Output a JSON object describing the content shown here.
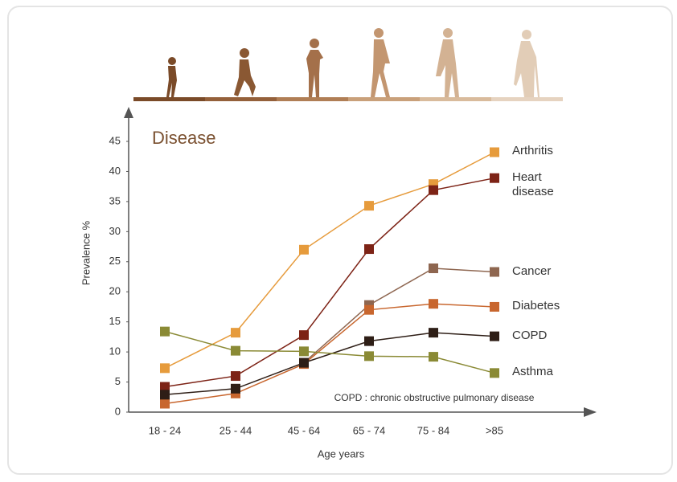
{
  "chart_data": {
    "type": "line",
    "title": "Disease",
    "categories": [
      "18 - 24",
      "25 - 44",
      "45 - 64",
      "65 - 74",
      "75 - 84",
      ">85"
    ],
    "series": [
      {
        "name": "Arthritis",
        "color": "#e69b3c",
        "values": [
          7.3,
          13.2,
          27,
          34.3,
          37.9,
          43.2
        ]
      },
      {
        "name": "Heart disease",
        "color": "#7d2316",
        "values": [
          4.2,
          6,
          12.8,
          27.1,
          36.9,
          38.9
        ]
      },
      {
        "name": "Cancer",
        "color": "#8e6650",
        "values": [
          null,
          null,
          8.2,
          17.8,
          23.9,
          23.3
        ]
      },
      {
        "name": "Diabetes",
        "color": "#c8662e",
        "values": [
          1.4,
          3.1,
          8,
          17,
          18,
          17.5
        ]
      },
      {
        "name": "COPD",
        "color": "#2e1e16",
        "values": [
          2.9,
          3.9,
          8.2,
          11.8,
          13.2,
          12.6
        ]
      },
      {
        "name": "Asthma",
        "color": "#8a8a35",
        "values": [
          13.4,
          10.2,
          10.1,
          9.3,
          9.2,
          6.5
        ]
      }
    ],
    "ylim": [
      0,
      45
    ],
    "yticks": [
      0,
      5,
      10,
      15,
      20,
      25,
      30,
      35,
      40,
      45
    ],
    "xlabel": "Age years",
    "ylabel": "Prevalence %",
    "annotation": "COPD : chronic obstructive pulmonary disease"
  }
}
